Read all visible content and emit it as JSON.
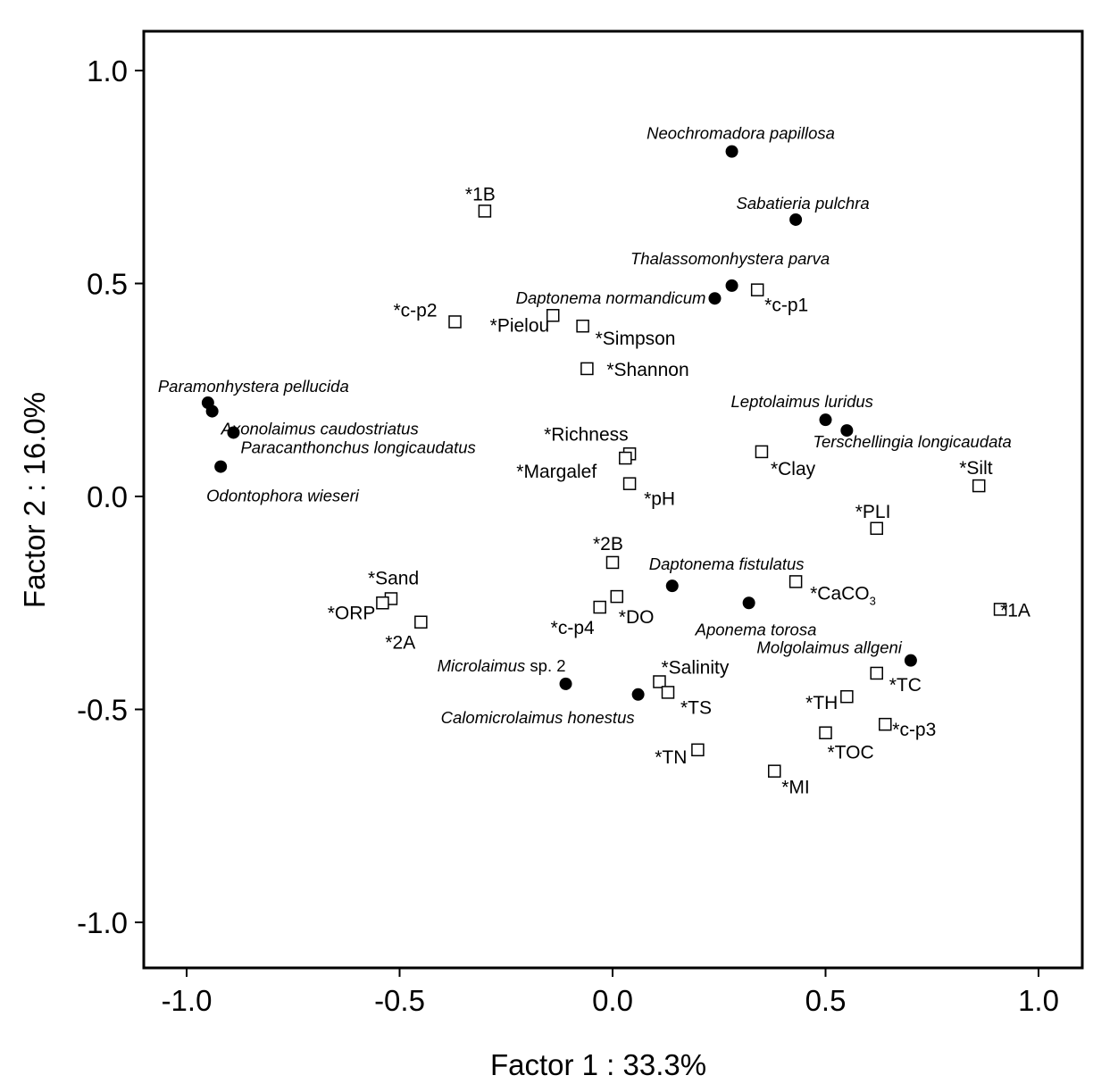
{
  "chart_data": {
    "type": "scatter",
    "xlabel": "Factor 1 : 33.3%",
    "ylabel": "Factor 2 : 16.0%",
    "xlim": [
      -1.1,
      1.1
    ],
    "ylim": [
      -1.1,
      1.1
    ],
    "x_ticks": [
      -1.0,
      -0.5,
      0.0,
      0.5,
      1.0
    ],
    "y_ticks": [
      -1.0,
      -0.5,
      0.0,
      0.5,
      1.0
    ],
    "x_tick_labels": [
      "-1.0",
      "-0.5",
      "0.0",
      "0.5",
      "1.0"
    ],
    "y_tick_labels": [
      "-1.0",
      "-0.5",
      "0.0",
      "0.5",
      "1.0"
    ],
    "grid": false,
    "legend": "none",
    "series": [
      {
        "marker": "filled-circle",
        "color": "#000000",
        "points": [
          {
            "label": "Neochromadora papillosa",
            "x": 0.28,
            "y": 0.81
          },
          {
            "label": "Sabatieria pulchra",
            "x": 0.43,
            "y": 0.65
          },
          {
            "label": "Thalassomonhystera parva",
            "x": 0.28,
            "y": 0.495
          },
          {
            "label": "Daptonema normandicum",
            "x": 0.24,
            "y": 0.465
          },
          {
            "label": "Paramonhystera pellucida",
            "x": -0.95,
            "y": 0.22
          },
          {
            "label": "Axonolaimus caudostriatus",
            "x": -0.94,
            "y": 0.2
          },
          {
            "label": "Paracanthonchus longicaudatus",
            "x": -0.89,
            "y": 0.15
          },
          {
            "label": "Odontophora wieseri",
            "x": -0.92,
            "y": 0.07
          },
          {
            "label": "Leptolaimus luridus",
            "x": 0.5,
            "y": 0.18
          },
          {
            "label": "Terschellingia longicaudata",
            "x": 0.55,
            "y": 0.155
          },
          {
            "label": "Daptonema fistulatus",
            "x": 0.14,
            "y": -0.21
          },
          {
            "label": "Aponema torosa",
            "x": 0.32,
            "y": -0.25
          },
          {
            "label": "Molgolaimus allgeni",
            "x": 0.7,
            "y": -0.385
          },
          {
            "label": "Microlaimus sp. 2",
            "x": -0.11,
            "y": -0.44
          },
          {
            "label": "Calomicrolaimus  honestus",
            "x": 0.06,
            "y": -0.465
          }
        ]
      },
      {
        "marker": "open-square",
        "color": "#000000",
        "points": [
          {
            "label": "*1B",
            "x": -0.3,
            "y": 0.67
          },
          {
            "label": "*c-p2",
            "x": -0.37,
            "y": 0.41
          },
          {
            "label": "*Pielou",
            "x": -0.14,
            "y": 0.425
          },
          {
            "label": "*Simpson",
            "x": -0.07,
            "y": 0.4
          },
          {
            "label": "*Shannon",
            "x": -0.06,
            "y": 0.3
          },
          {
            "label": "*c-p1",
            "x": 0.34,
            "y": 0.485
          },
          {
            "label": "*Richness",
            "x": 0.04,
            "y": 0.1
          },
          {
            "label": "*Margalef",
            "x": 0.03,
            "y": 0.09
          },
          {
            "label": "*pH",
            "x": 0.04,
            "y": 0.03
          },
          {
            "label": "*Clay",
            "x": 0.35,
            "y": 0.105
          },
          {
            "label": "*Silt",
            "x": 0.86,
            "y": 0.025
          },
          {
            "label": "*PLI",
            "x": 0.62,
            "y": -0.075
          },
          {
            "label": "*2B",
            "x": 0.0,
            "y": -0.155
          },
          {
            "label": "*Sand",
            "x": -0.52,
            "y": -0.24
          },
          {
            "label": "*ORP",
            "x": -0.54,
            "y": -0.25
          },
          {
            "label": "*2A",
            "x": -0.45,
            "y": -0.295
          },
          {
            "label": "*c-p4",
            "x": -0.03,
            "y": -0.26
          },
          {
            "label": "*DO",
            "x": 0.01,
            "y": -0.235
          },
          {
            "label": "*CaCO3",
            "x": 0.43,
            "y": -0.2
          },
          {
            "label": "*1A",
            "x": 0.91,
            "y": -0.265
          },
          {
            "label": "*Salinity",
            "x": 0.11,
            "y": -0.435
          },
          {
            "label": "*TS",
            "x": 0.13,
            "y": -0.46
          },
          {
            "label": "*TC",
            "x": 0.62,
            "y": -0.415
          },
          {
            "label": "*TH",
            "x": 0.55,
            "y": -0.47
          },
          {
            "label": "*c-p3",
            "x": 0.64,
            "y": -0.535
          },
          {
            "label": "*TOC",
            "x": 0.5,
            "y": -0.555
          },
          {
            "label": "*TN",
            "x": 0.2,
            "y": -0.595
          },
          {
            "label": "*MI",
            "x": 0.38,
            "y": -0.645
          }
        ]
      }
    ]
  }
}
